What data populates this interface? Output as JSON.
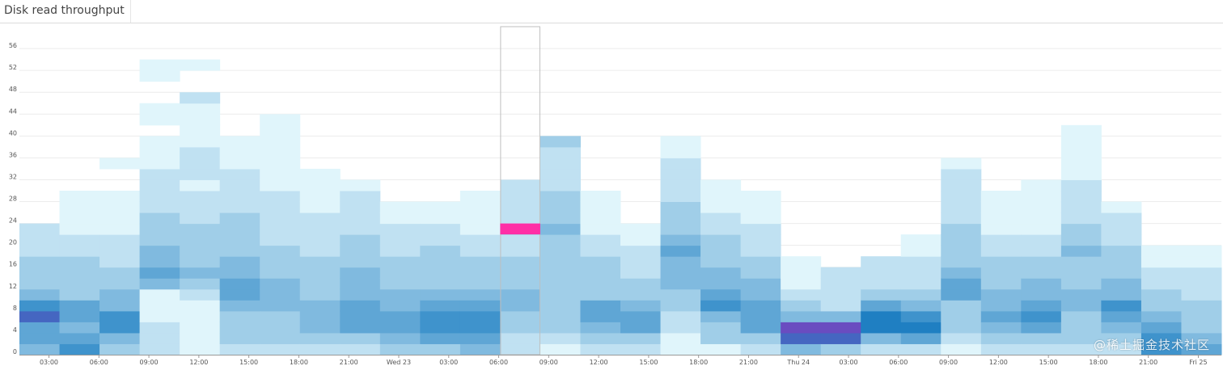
{
  "panel": {
    "title": "Disk read throughput"
  },
  "watermark": "@稀土掘金技术社区",
  "colors": {
    "cell_low": "#e0f5fb",
    "cell_high": "#1f7fc2",
    "cell_peak": "#6a4cc0",
    "highlight": "#ff2fa6",
    "grid": "#ececec",
    "axis": "#999999",
    "hover_border": "#bfbfbf"
  },
  "chart_data": {
    "type": "heatmap",
    "title": "Disk read throughput",
    "xlabel": "",
    "ylabel": "",
    "y_ticks": [
      "0",
      "4",
      "8",
      "12",
      "16",
      "20",
      "24",
      "28",
      "32",
      "36",
      "40",
      "44",
      "48",
      "52",
      "56"
    ],
    "x_ticks": [
      "03:00",
      "06:00",
      "09:00",
      "12:00",
      "15:00",
      "18:00",
      "21:00",
      "Wed 23",
      "03:00",
      "06:00",
      "09:00",
      "12:00",
      "15:00",
      "18:00",
      "21:00",
      "Thu 24",
      "03:00",
      "06:00",
      "09:00",
      "12:00",
      "15:00",
      "18:00",
      "21:00",
      "Fri 25"
    ],
    "ylim": [
      0,
      60
    ],
    "bucket_size": 2,
    "columns": 30,
    "highlighted_cell": {
      "column": 12,
      "y_from": 22,
      "y_to": 24
    },
    "hovered_column": 12,
    "intensity": [
      [
        4,
        5,
        5,
        8,
        6,
        4,
        3,
        3,
        3,
        2,
        2,
        2
      ],
      [
        6,
        5,
        4,
        5,
        5,
        3,
        3,
        3,
        3,
        2,
        2,
        1,
        1,
        1,
        1
      ],
      [
        3,
        4,
        6,
        6,
        4,
        4,
        3,
        3,
        2,
        2,
        2,
        1,
        1,
        1,
        1,
        0,
        0,
        1
      ],
      [
        2,
        2,
        2,
        1,
        1,
        1,
        4,
        5,
        4,
        4,
        3,
        3,
        3,
        2,
        2,
        2,
        2,
        1,
        1,
        1,
        0,
        1,
        1,
        0,
        0,
        1,
        1
      ],
      [
        1,
        1,
        1,
        1,
        1,
        2,
        3,
        4,
        3,
        3,
        3,
        3,
        2,
        2,
        2,
        1,
        2,
        2,
        2,
        1,
        1,
        1,
        1,
        2,
        0,
        0,
        1
      ],
      [
        2,
        3,
        3,
        3,
        4,
        5,
        5,
        4,
        4,
        3,
        3,
        3,
        3,
        2,
        2,
        2,
        2,
        1,
        1,
        1
      ],
      [
        2,
        3,
        3,
        3,
        4,
        4,
        4,
        3,
        3,
        3,
        2,
        2,
        2,
        2,
        2,
        1,
        1,
        1,
        1,
        1,
        1,
        1
      ],
      [
        2,
        3,
        4,
        4,
        4,
        3,
        3,
        3,
        3,
        2,
        2,
        2,
        2,
        1,
        1,
        1,
        1
      ],
      [
        2,
        3,
        5,
        5,
        5,
        4,
        4,
        4,
        3,
        3,
        3,
        2,
        2,
        2,
        2,
        1
      ],
      [
        3,
        4,
        5,
        5,
        4,
        4,
        3,
        3,
        3,
        2,
        2,
        2,
        1,
        1
      ],
      [
        3,
        5,
        6,
        6,
        5,
        4,
        3,
        3,
        3,
        3,
        2,
        2,
        1,
        1
      ],
      [
        4,
        5,
        6,
        6,
        5,
        4,
        3,
        3,
        3,
        2,
        2,
        1,
        1,
        1,
        1
      ],
      [
        2,
        2,
        3,
        3,
        4,
        4,
        3,
        3,
        3,
        2,
        2,
        3,
        2,
        2,
        2,
        2
      ],
      [
        1,
        2,
        3,
        3,
        3,
        3,
        3,
        3,
        3,
        3,
        3,
        4,
        3,
        3,
        3,
        2,
        2,
        2,
        2,
        3
      ],
      [
        2,
        3,
        4,
        5,
        5,
        3,
        3,
        3,
        3,
        2,
        2,
        1,
        1,
        1,
        1
      ],
      [
        2,
        3,
        5,
        5,
        4,
        3,
        3,
        2,
        2,
        2,
        1,
        1
      ],
      [
        1,
        1,
        2,
        2,
        3,
        3,
        4,
        4,
        4,
        5,
        4,
        3,
        3,
        3,
        2,
        2,
        2,
        2,
        1,
        1
      ],
      [
        1,
        3,
        3,
        4,
        6,
        5,
        4,
        4,
        3,
        3,
        3,
        2,
        2,
        1,
        1,
        1
      ],
      [
        2,
        3,
        5,
        5,
        5,
        4,
        4,
        3,
        3,
        2,
        2,
        2,
        1,
        1,
        1
      ],
      [
        4,
        8,
        9,
        4,
        3,
        2,
        1,
        1,
        1
      ],
      [
        3,
        8,
        9,
        4,
        2,
        2,
        2,
        2
      ],
      [
        2,
        4,
        7,
        7,
        5,
        3,
        2,
        2,
        2
      ],
      [
        2,
        5,
        7,
        6,
        4,
        3,
        2,
        2,
        2,
        1,
        1
      ],
      [
        1,
        2,
        3,
        3,
        3,
        5,
        5,
        4,
        3,
        3,
        3,
        3,
        2,
        2,
        2,
        2,
        2,
        1
      ],
      [
        2,
        3,
        4,
        5,
        4,
        4,
        3,
        3,
        3,
        2,
        2,
        1,
        1,
        1,
        1
      ],
      [
        2,
        3,
        5,
        6,
        5,
        4,
        4,
        3,
        3,
        2,
        2,
        1,
        1,
        1,
        1,
        1
      ],
      [
        2,
        3,
        3,
        3,
        4,
        4,
        3,
        3,
        3,
        4,
        3,
        3,
        2,
        2,
        2,
        2,
        1,
        1,
        1,
        1,
        1
      ],
      [
        2,
        3,
        4,
        5,
        6,
        4,
        4,
        3,
        3,
        3,
        2,
        2,
        2,
        1
      ],
      [
        6,
        6,
        5,
        4,
        3,
        3,
        2,
        2,
        1,
        1
      ],
      [
        5,
        4,
        3,
        3,
        3,
        2,
        2,
        2,
        1,
        1
      ]
    ]
  }
}
